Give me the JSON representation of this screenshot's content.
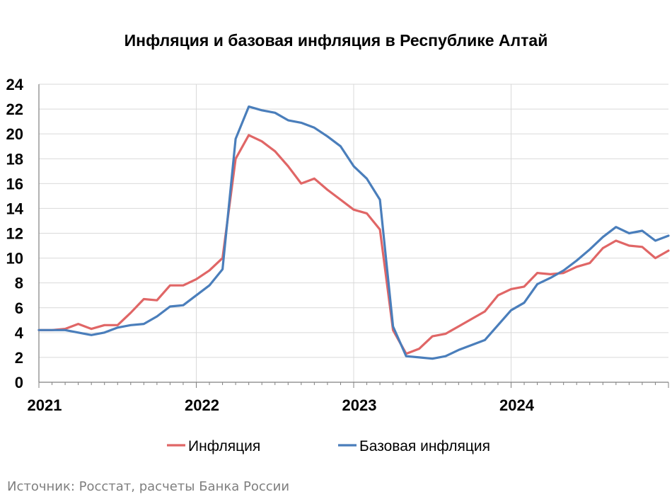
{
  "colors": {
    "inflation": "#e06666",
    "core_inflation": "#4a7ebb",
    "grid": "#d9d9d9",
    "axis": "#808080",
    "source": "#7f7f7f"
  },
  "source_note": "Источник: Росстат, расчеты Банка России",
  "chart_data": {
    "type": "line",
    "title": "Инфляция и базовая инфляция в Республике Алтай",
    "xlabel": "",
    "ylabel": "",
    "ylim": [
      0,
      24
    ],
    "yticks": [
      "0",
      "2",
      "4",
      "6",
      "8",
      "10",
      "12",
      "14",
      "16",
      "18",
      "20",
      "22",
      "24"
    ],
    "xticks": [
      "2021",
      "2022",
      "2023",
      "2024"
    ],
    "x_unit": "months since Jan 2021",
    "grid": true,
    "legend_position": "bottom",
    "series": [
      {
        "name": "Инфляция",
        "color": "#e06666",
        "values": [
          4.2,
          4.2,
          4.3,
          4.7,
          4.3,
          4.6,
          4.6,
          5.6,
          6.7,
          6.6,
          7.8,
          7.8,
          8.3,
          9.0,
          10.0,
          18.0,
          19.9,
          19.4,
          18.6,
          17.4,
          16.0,
          16.4,
          15.5,
          14.7,
          13.9,
          13.6,
          12.3,
          4.2,
          2.3,
          2.7,
          3.7,
          3.9,
          4.5,
          5.1,
          5.7,
          7.0,
          7.5,
          7.7,
          8.8,
          8.7,
          8.8,
          9.3,
          9.6,
          10.8,
          11.4,
          11.0,
          10.9,
          10.0,
          10.6
        ]
      },
      {
        "name": "Базовая инфляция",
        "color": "#4a7ebb",
        "values": [
          4.2,
          4.2,
          4.2,
          4.0,
          3.8,
          4.0,
          4.4,
          4.6,
          4.7,
          5.3,
          6.1,
          6.2,
          7.0,
          7.8,
          9.1,
          19.6,
          22.2,
          21.9,
          21.7,
          21.1,
          20.9,
          20.5,
          19.8,
          19.0,
          17.4,
          16.4,
          14.7,
          4.5,
          2.1,
          2.0,
          1.9,
          2.1,
          2.6,
          3.0,
          3.4,
          4.6,
          5.8,
          6.4,
          7.9,
          8.4,
          9.0,
          9.8,
          10.7,
          11.7,
          12.5,
          12.0,
          12.2,
          11.4,
          11.8
        ]
      }
    ]
  }
}
